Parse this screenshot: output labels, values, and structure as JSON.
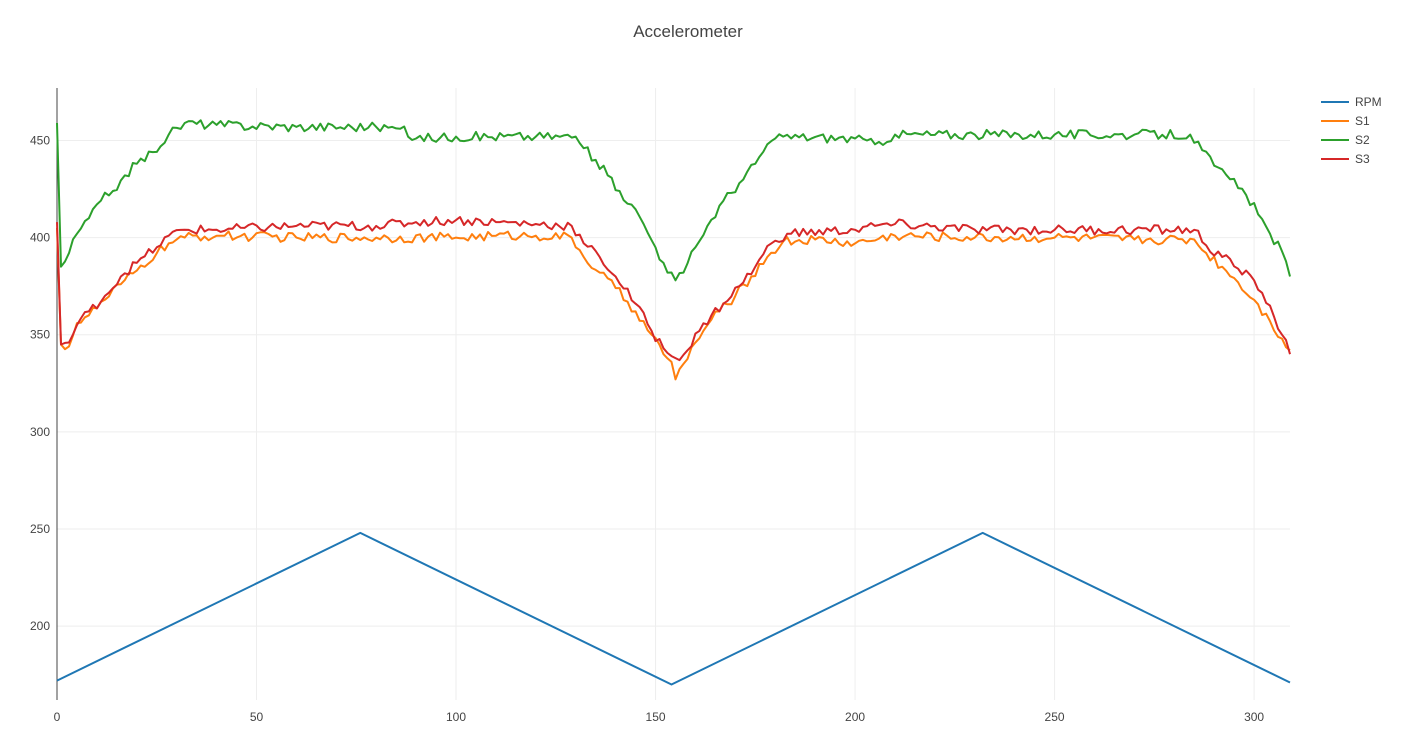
{
  "chart_data": {
    "type": "line",
    "title": "Accelerometer",
    "xlabel": "",
    "ylabel": "",
    "xlim": [
      0,
      309
    ],
    "ylim": [
      162,
      477
    ],
    "x_ticks": [
      0,
      50,
      100,
      150,
      200,
      250,
      300
    ],
    "y_ticks": [
      200,
      250,
      300,
      350,
      400,
      450
    ],
    "grid": true,
    "legend_position": "top-right",
    "series": [
      {
        "name": "RPM",
        "color": "#1f77b4",
        "anchors": [
          [
            0,
            172
          ],
          [
            76,
            248
          ],
          [
            154,
            170
          ],
          [
            232,
            248
          ],
          [
            309,
            171
          ]
        ]
      },
      {
        "name": "S1",
        "color": "#ff7f0e",
        "anchors": [
          [
            0,
            405
          ],
          [
            1,
            345
          ],
          [
            3,
            344
          ],
          [
            5,
            356
          ],
          [
            8,
            360
          ],
          [
            12,
            368
          ],
          [
            16,
            376
          ],
          [
            20,
            383
          ],
          [
            25,
            392
          ],
          [
            28,
            397
          ],
          [
            32,
            400
          ],
          [
            40,
            401
          ],
          [
            60,
            400
          ],
          [
            80,
            400
          ],
          [
            100,
            400
          ],
          [
            110,
            401
          ],
          [
            120,
            401
          ],
          [
            129,
            400
          ],
          [
            132,
            390
          ],
          [
            136,
            382
          ],
          [
            140,
            374
          ],
          [
            145,
            362
          ],
          [
            149,
            350
          ],
          [
            152,
            340
          ],
          [
            154,
            336
          ],
          [
            155,
            327
          ],
          [
            157,
            335
          ],
          [
            160,
            346
          ],
          [
            163,
            355
          ],
          [
            166,
            362
          ],
          [
            170,
            370
          ],
          [
            174,
            380
          ],
          [
            178,
            390
          ],
          [
            182,
            398
          ],
          [
            190,
            399
          ],
          [
            200,
            397
          ],
          [
            210,
            401
          ],
          [
            230,
            400
          ],
          [
            250,
            400
          ],
          [
            270,
            399
          ],
          [
            285,
            399
          ],
          [
            288,
            392
          ],
          [
            292,
            385
          ],
          [
            296,
            377
          ],
          [
            300,
            368
          ],
          [
            304,
            357
          ],
          [
            307,
            348
          ],
          [
            309,
            342
          ]
        ]
      },
      {
        "name": "S2",
        "color": "#2ca02c",
        "anchors": [
          [
            0,
            459
          ],
          [
            1,
            385
          ],
          [
            3,
            392
          ],
          [
            5,
            402
          ],
          [
            8,
            410
          ],
          [
            11,
            419
          ],
          [
            14,
            424
          ],
          [
            17,
            432
          ],
          [
            20,
            438
          ],
          [
            24,
            444
          ],
          [
            28,
            453
          ],
          [
            32,
            459
          ],
          [
            40,
            458
          ],
          [
            60,
            457
          ],
          [
            80,
            457
          ],
          [
            86,
            456
          ],
          [
            90,
            451
          ],
          [
            100,
            452
          ],
          [
            120,
            452
          ],
          [
            130,
            452
          ],
          [
            132,
            446
          ],
          [
            135,
            440
          ],
          [
            138,
            432
          ],
          [
            141,
            424
          ],
          [
            144,
            417
          ],
          [
            147,
            407
          ],
          [
            150,
            395
          ],
          [
            152,
            387
          ],
          [
            155,
            378
          ],
          [
            157,
            382
          ],
          [
            160,
            395
          ],
          [
            163,
            406
          ],
          [
            167,
            419
          ],
          [
            171,
            428
          ],
          [
            175,
            438
          ],
          [
            178,
            448
          ],
          [
            182,
            452
          ],
          [
            200,
            451
          ],
          [
            205,
            448
          ],
          [
            210,
            453
          ],
          [
            230,
            453
          ],
          [
            250,
            453
          ],
          [
            270,
            453
          ],
          [
            284,
            453
          ],
          [
            287,
            445
          ],
          [
            290,
            437
          ],
          [
            294,
            430
          ],
          [
            298,
            422
          ],
          [
            301,
            412
          ],
          [
            304,
            402
          ],
          [
            307,
            393
          ],
          [
            309,
            380
          ]
        ]
      },
      {
        "name": "S3",
        "color": "#d62728",
        "anchors": [
          [
            0,
            408
          ],
          [
            1,
            345
          ],
          [
            3,
            346
          ],
          [
            5,
            355
          ],
          [
            8,
            362
          ],
          [
            12,
            370
          ],
          [
            16,
            380
          ],
          [
            20,
            387
          ],
          [
            25,
            395
          ],
          [
            28,
            401
          ],
          [
            32,
            404
          ],
          [
            40,
            404
          ],
          [
            60,
            406
          ],
          [
            80,
            406
          ],
          [
            90,
            408
          ],
          [
            100,
            409
          ],
          [
            110,
            408
          ],
          [
            120,
            407
          ],
          [
            129,
            406
          ],
          [
            132,
            397
          ],
          [
            136,
            390
          ],
          [
            140,
            380
          ],
          [
            145,
            366
          ],
          [
            149,
            352
          ],
          [
            152,
            343
          ],
          [
            155,
            338
          ],
          [
            158,
            342
          ],
          [
            161,
            352
          ],
          [
            164,
            360
          ],
          [
            167,
            366
          ],
          [
            171,
            375
          ],
          [
            175,
            385
          ],
          [
            179,
            397
          ],
          [
            183,
            402
          ],
          [
            200,
            404
          ],
          [
            205,
            406
          ],
          [
            210,
            407
          ],
          [
            230,
            404
          ],
          [
            250,
            404
          ],
          [
            270,
            404
          ],
          [
            285,
            404
          ],
          [
            288,
            396
          ],
          [
            292,
            390
          ],
          [
            296,
            384
          ],
          [
            300,
            378
          ],
          [
            304,
            365
          ],
          [
            307,
            350
          ],
          [
            309,
            340
          ]
        ]
      }
    ]
  }
}
